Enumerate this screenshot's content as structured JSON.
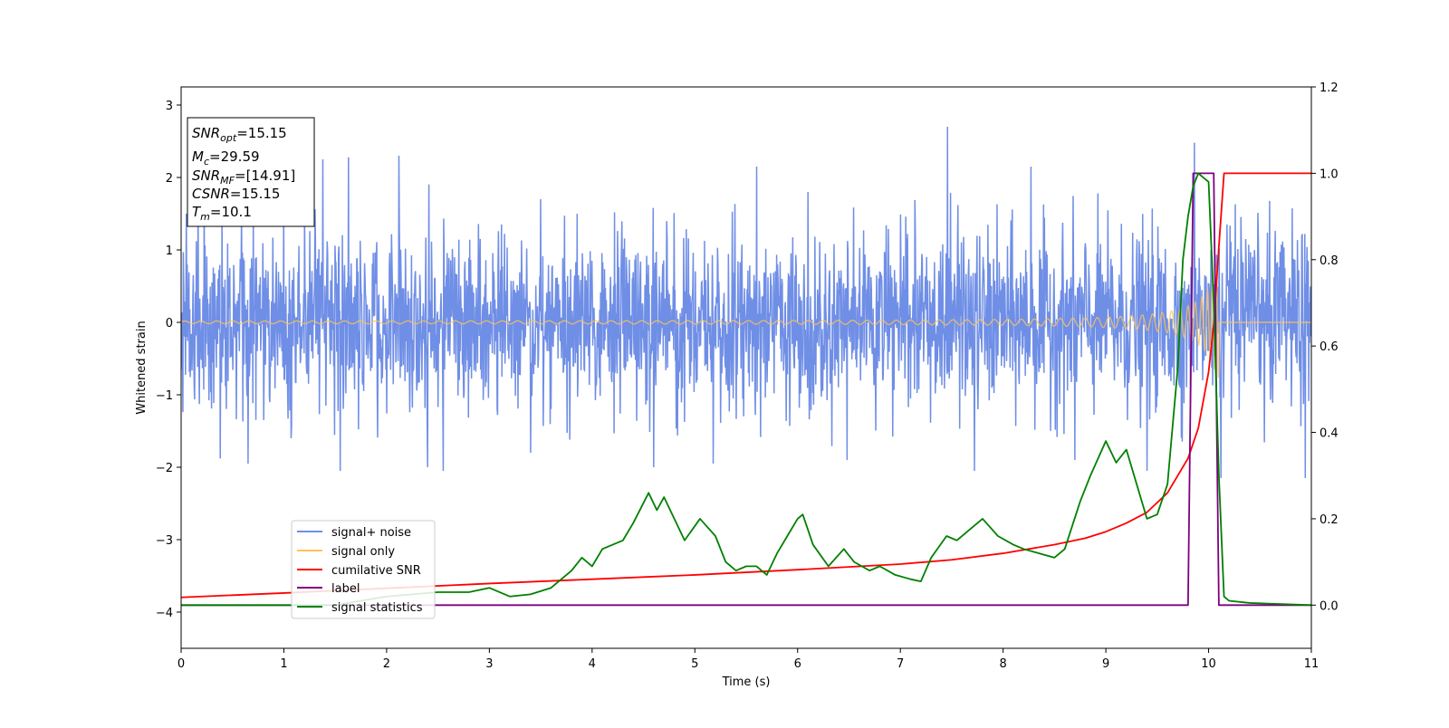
{
  "chart_data": {
    "type": "line",
    "xlabel": "Time (s)",
    "ylabel": "Whitened strain",
    "xlim": [
      0,
      11
    ],
    "ylim_left": [
      -4.5,
      3.25
    ],
    "ylim_right": [
      -0.1,
      1.2
    ],
    "x_ticks": [
      "0",
      "1",
      "2",
      "3",
      "4",
      "5",
      "6",
      "7",
      "8",
      "9",
      "10",
      "11"
    ],
    "y_left_ticks": [
      "3",
      "2",
      "1",
      "0",
      "−1",
      "−2",
      "−3",
      "−4"
    ],
    "y_right_ticks": [
      "1.2",
      "1.0",
      "0.8",
      "0.6",
      "0.4",
      "0.2",
      "0.0"
    ],
    "info_box": {
      "snr_opt": {
        "sym": "SNR",
        "sub": "opt",
        "val": "=15.15"
      },
      "mc": {
        "sym": "M",
        "sub": "c",
        "val": "=29.59"
      },
      "snr_mf": {
        "sym": "SNR",
        "sub": "MF",
        "val": "=[14.91]"
      },
      "csnr": {
        "sym": "CSNR",
        "val": "=15.15"
      },
      "tm": {
        "sym": "T",
        "sub": "m",
        "val": "=10.1"
      }
    },
    "legend": {
      "position": "lower-left",
      "entries": [
        {
          "label": "signal+ noise",
          "color": "#6f8ee6"
        },
        {
          "label": "signal only",
          "color": "#ffc35a"
        },
        {
          "label": "cumilative SNR",
          "color": "#ff0000"
        },
        {
          "label": "label",
          "color": "#800080"
        },
        {
          "label": "signal statistics",
          "color": "#008000"
        }
      ]
    },
    "series": [
      {
        "name": "signal+ noise",
        "axis": "left",
        "color": "#6f8ee6",
        "description_values": {
          "noise_std": 0.6,
          "peak_max": 2.7,
          "peak_min": -2.05
        },
        "spikes_up": [
          [
            0.05,
            1.5
          ],
          [
            1.0,
            1.6
          ],
          [
            1.38,
            2.25
          ],
          [
            1.63,
            2.28
          ],
          [
            2.12,
            2.3
          ],
          [
            3.5,
            1.7
          ],
          [
            5.6,
            2.15
          ],
          [
            6.1,
            1.8
          ],
          [
            7.46,
            2.7
          ],
          [
            8.27,
            2.15
          ],
          [
            9.86,
            2.48
          ]
        ],
        "spikes_down": [
          [
            0.38,
            -1.88
          ],
          [
            0.65,
            -1.95
          ],
          [
            1.07,
            -1.6
          ],
          [
            1.55,
            -2.05
          ],
          [
            2.4,
            -2.0
          ],
          [
            2.55,
            -2.05
          ],
          [
            3.4,
            -1.8
          ],
          [
            4.6,
            -2.0
          ],
          [
            5.18,
            -1.95
          ],
          [
            6.48,
            -1.9
          ],
          [
            7.72,
            -2.05
          ],
          [
            8.7,
            -1.9
          ],
          [
            9.4,
            -2.05
          ],
          [
            10.12,
            -2.15
          ],
          [
            10.94,
            -2.15
          ]
        ]
      },
      {
        "name": "signal only",
        "axis": "left",
        "color": "#ffc35a",
        "chirp": {
          "t_merge": 10.1,
          "f0": 6.0,
          "f_end": 32.0,
          "amp_start": 0.015,
          "amp_end": 0.9
        }
      },
      {
        "name": "cumilative SNR",
        "axis": "right",
        "color": "#ff0000",
        "x": [
          0,
          1,
          2,
          3,
          4,
          5,
          6,
          7,
          7.5,
          8,
          8.5,
          8.8,
          9,
          9.2,
          9.4,
          9.6,
          9.8,
          9.9,
          10.0,
          10.05,
          10.1,
          10.15,
          11
        ],
        "values": [
          0.018,
          0.028,
          0.039,
          0.05,
          0.06,
          0.07,
          0.082,
          0.095,
          0.105,
          0.12,
          0.14,
          0.155,
          0.17,
          0.19,
          0.215,
          0.26,
          0.34,
          0.41,
          0.54,
          0.65,
          0.83,
          1.0,
          1.0
        ]
      },
      {
        "name": "label",
        "axis": "right",
        "color": "#800080",
        "x": [
          0,
          9.8,
          9.85,
          10.05,
          10.1,
          11
        ],
        "values": [
          0,
          0,
          1,
          1,
          0,
          0
        ]
      },
      {
        "name": "signal statistics",
        "axis": "right",
        "color": "#008000",
        "x": [
          0,
          1.5,
          2.0,
          2.5,
          2.8,
          3.0,
          3.2,
          3.4,
          3.6,
          3.7,
          3.8,
          3.9,
          4.0,
          4.1,
          4.2,
          4.3,
          4.4,
          4.55,
          4.63,
          4.7,
          4.9,
          5.05,
          5.2,
          5.3,
          5.4,
          5.5,
          5.6,
          5.7,
          5.8,
          5.9,
          6.0,
          6.05,
          6.15,
          6.3,
          6.45,
          6.55,
          6.7,
          6.8,
          6.95,
          7.1,
          7.2,
          7.3,
          7.45,
          7.55,
          7.65,
          7.8,
          7.95,
          8.1,
          8.2,
          8.35,
          8.5,
          8.6,
          8.75,
          8.85,
          9.0,
          9.1,
          9.2,
          9.3,
          9.4,
          9.5,
          9.6,
          9.7,
          9.75,
          9.8,
          9.85,
          9.9,
          9.95,
          10.0,
          10.05,
          10.1,
          10.15,
          10.2,
          10.4,
          11
        ],
        "values": [
          0.0,
          0.0,
          0.02,
          0.03,
          0.03,
          0.04,
          0.02,
          0.025,
          0.04,
          0.06,
          0.08,
          0.11,
          0.09,
          0.13,
          0.14,
          0.15,
          0.19,
          0.26,
          0.22,
          0.25,
          0.15,
          0.2,
          0.16,
          0.1,
          0.08,
          0.09,
          0.09,
          0.07,
          0.12,
          0.16,
          0.2,
          0.21,
          0.14,
          0.09,
          0.13,
          0.1,
          0.08,
          0.09,
          0.07,
          0.06,
          0.055,
          0.11,
          0.16,
          0.15,
          0.17,
          0.2,
          0.16,
          0.14,
          0.13,
          0.12,
          0.11,
          0.13,
          0.24,
          0.3,
          0.38,
          0.33,
          0.36,
          0.28,
          0.2,
          0.21,
          0.28,
          0.55,
          0.8,
          0.9,
          0.97,
          1.0,
          0.99,
          0.98,
          0.7,
          0.3,
          0.02,
          0.01,
          0.005,
          0.0
        ]
      }
    ]
  }
}
